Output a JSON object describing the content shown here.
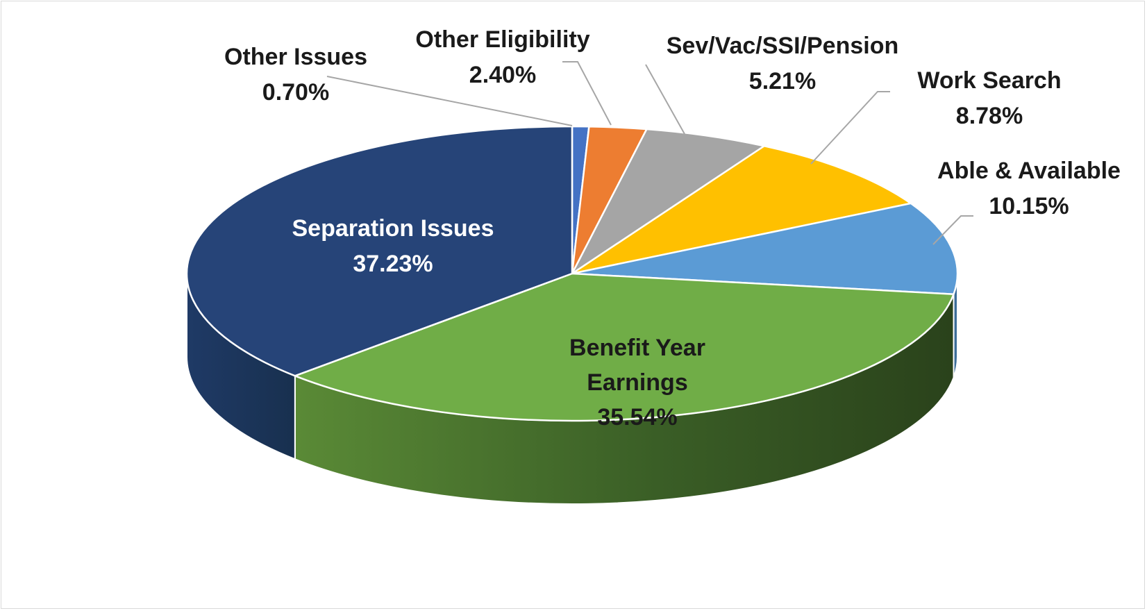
{
  "chart_data": {
    "type": "pie",
    "title": "",
    "style": "3d-exploded-none",
    "slices": [
      {
        "label": "Other Issues",
        "value": 0.7,
        "display": "0.70%",
        "color": "#4472c4",
        "side": "#2f4f8a"
      },
      {
        "label": "Other Eligibility",
        "value": 2.4,
        "display": "2.40%",
        "color": "#ed7d31",
        "side": "#a85720"
      },
      {
        "label": "Sev/Vac/SSI/Pension",
        "value": 5.21,
        "display": "5.21%",
        "color": "#a5a5a5",
        "side": "#6f6f6f"
      },
      {
        "label": "Work Search",
        "value": 8.78,
        "display": "8.78%",
        "color": "#ffc000",
        "side": "#b38600"
      },
      {
        "label": "Able & Available",
        "value": 10.15,
        "display": "10.15%",
        "color": "#5b9bd5",
        "side": "#3d6d99"
      },
      {
        "label": "Benefit Year Earnings",
        "label_lines": [
          "Benefit Year",
          "Earnings"
        ],
        "value": 35.54,
        "display": "35.54%",
        "color": "#70ad47",
        "side": "#2e4a1e",
        "label_color": "#1a1a1a"
      },
      {
        "label": "Separation Issues",
        "value": 37.23,
        "display": "37.23%",
        "color": "#264478",
        "side": "#1e365e",
        "label_color": "#ffffff"
      }
    ]
  }
}
